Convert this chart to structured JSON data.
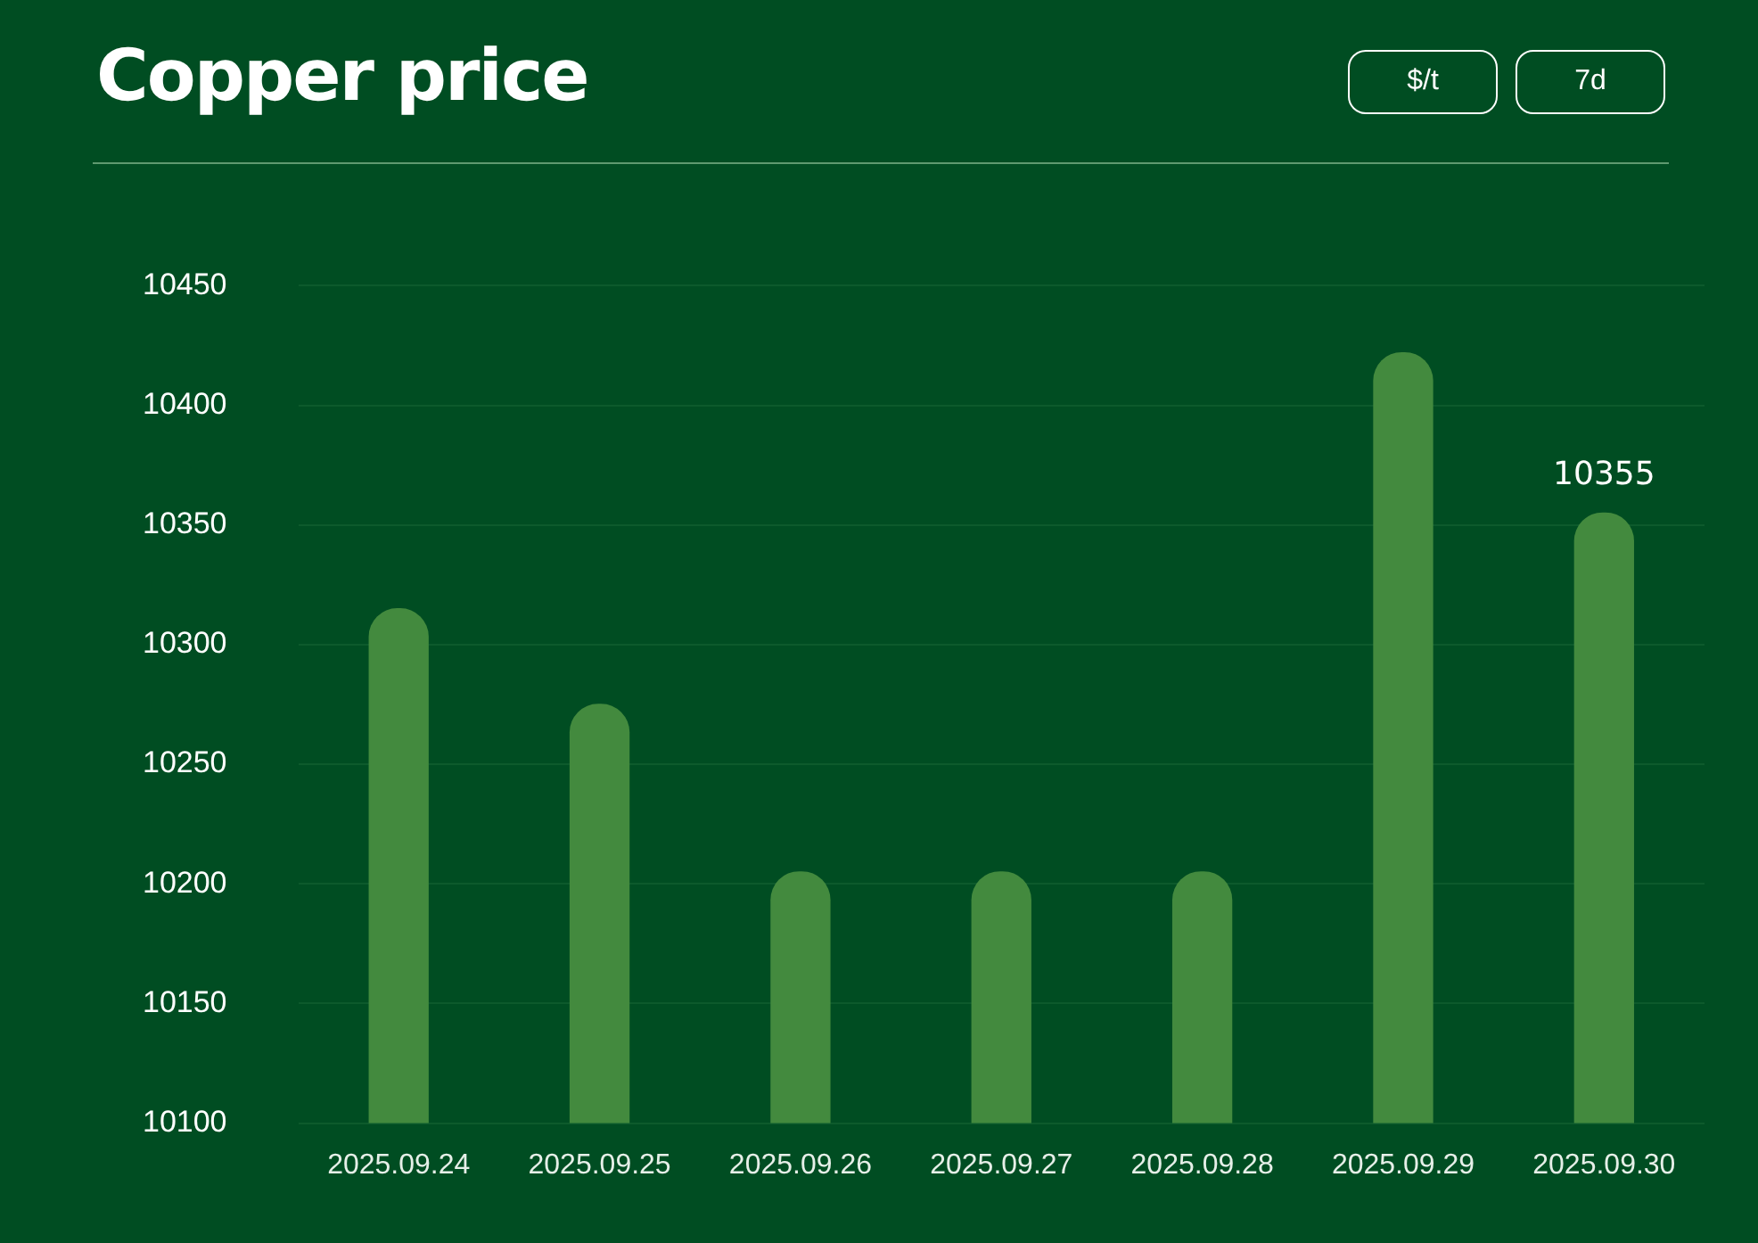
{
  "chart_data": {
    "type": "bar",
    "title": "Copper price",
    "annotations": [
      "$/t",
      "7d"
    ],
    "categories": [
      "2025.09.24",
      "2025.09.25",
      "2025.09.26",
      "2025.09.27",
      "2025.09.28",
      "2025.09.29",
      "2025.09.30"
    ],
    "values": [
      10315,
      10275,
      10205,
      10205,
      10205,
      10422,
      10355
    ],
    "value_labels": [
      null,
      null,
      null,
      null,
      null,
      null,
      "10355"
    ],
    "color": "#438a3e",
    "ylim": [
      10100,
      10450
    ],
    "yticks": [
      10100,
      10150,
      10200,
      10250,
      10300,
      10350,
      10400,
      10450
    ],
    "grid": "y",
    "legend": false
  }
}
